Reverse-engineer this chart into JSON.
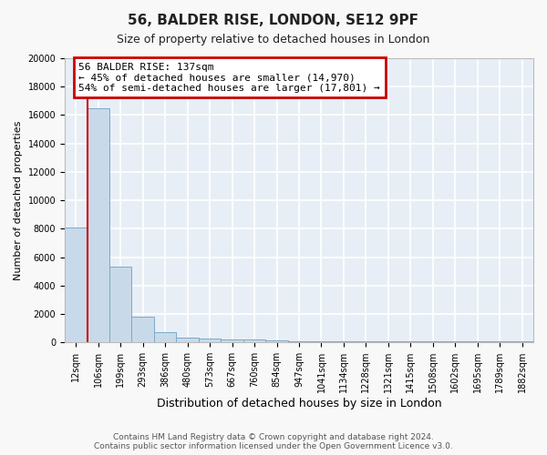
{
  "title1": "56, BALDER RISE, LONDON, SE12 9PF",
  "title2": "Size of property relative to detached houses in London",
  "xlabel": "Distribution of detached houses by size in London",
  "ylabel": "Number of detached properties",
  "categories": [
    "12sqm",
    "106sqm",
    "199sqm",
    "293sqm",
    "386sqm",
    "480sqm",
    "573sqm",
    "667sqm",
    "760sqm",
    "854sqm",
    "947sqm",
    "1041sqm",
    "1134sqm",
    "1228sqm",
    "1321sqm",
    "1415sqm",
    "1508sqm",
    "1602sqm",
    "1695sqm",
    "1789sqm",
    "1882sqm"
  ],
  "values": [
    8100,
    16500,
    5300,
    1800,
    750,
    320,
    280,
    200,
    180,
    150,
    50,
    50,
    50,
    50,
    50,
    50,
    50,
    50,
    50,
    50,
    50
  ],
  "bar_color": "#c8daea",
  "bar_edge_color": "#7aaac8",
  "vline_x": 0.5,
  "vline_color": "#cc0000",
  "ylim_max": 20000,
  "ytick_step": 2000,
  "annotation_line1": "56 BALDER RISE: 137sqm",
  "annotation_line2": "← 45% of detached houses are smaller (14,970)",
  "annotation_line3": "54% of semi-detached houses are larger (17,801) →",
  "annotation_edge_color": "#cc0000",
  "footer1": "Contains HM Land Registry data © Crown copyright and database right 2024.",
  "footer2": "Contains public sector information licensed under the Open Government Licence v3.0.",
  "fig_bg_color": "#f8f8f8",
  "plot_bg_color": "#e8eef5",
  "grid_color": "#ffffff",
  "title1_fontsize": 11,
  "title2_fontsize": 9,
  "ylabel_fontsize": 8,
  "xlabel_fontsize": 9,
  "tick_fontsize": 7,
  "footer_fontsize": 6.5
}
